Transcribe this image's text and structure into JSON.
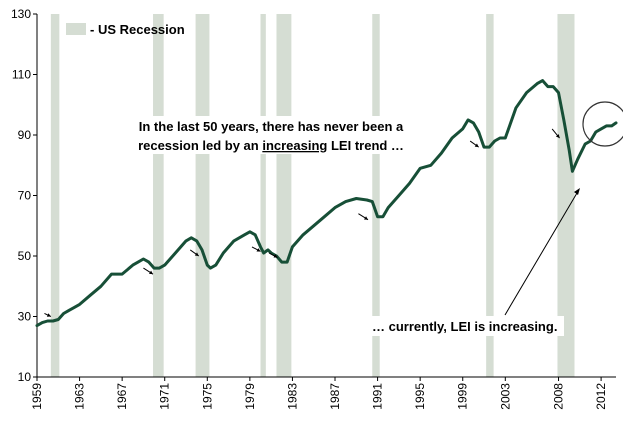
{
  "chart_data": {
    "type": "line",
    "ylim": [
      10,
      130
    ],
    "yticks": [
      10,
      30,
      50,
      70,
      90,
      110,
      130
    ],
    "xlim": [
      1959,
      2013.4
    ],
    "xticks": [
      1959,
      1963,
      1967,
      1971,
      1975,
      1979,
      1983,
      1987,
      1991,
      1995,
      1999,
      2003,
      2008,
      2012
    ],
    "grid": false,
    "legend_position": "top-left",
    "recession_label": "- US Recession",
    "recession_color": "#d5ddd3",
    "line_color": "#174f37",
    "recessions": [
      [
        1960.3,
        1961.1
      ],
      [
        1969.9,
        1970.9
      ],
      [
        1973.9,
        1975.2
      ],
      [
        1980.0,
        1980.5
      ],
      [
        1981.5,
        1982.9
      ],
      [
        1990.5,
        1991.2
      ],
      [
        2001.2,
        2001.9
      ],
      [
        2007.9,
        2009.5
      ]
    ],
    "series": [
      {
        "x": [
          1959.0,
          1959.5,
          1960.0,
          1960.5,
          1961.0,
          1961.5,
          1962.0,
          1962.5,
          1963.0,
          1964.0,
          1965.0,
          1966.0,
          1966.5,
          1967.0,
          1967.5,
          1968.0,
          1968.5,
          1969.0,
          1969.5,
          1970.0,
          1970.5,
          1971.0,
          1972.0,
          1973.0,
          1973.5,
          1974.0,
          1974.5,
          1975.0,
          1975.3,
          1975.8,
          1976.5,
          1977.5,
          1978.5,
          1979.0,
          1979.5,
          1980.0,
          1980.3,
          1980.7,
          1981.0,
          1981.5,
          1982.0,
          1982.5,
          1983.0,
          1984.0,
          1985.0,
          1986.0,
          1987.0,
          1988.0,
          1989.0,
          1990.0,
          1990.5,
          1991.0,
          1991.5,
          1992.0,
          1993.0,
          1994.0,
          1995.0,
          1996.0,
          1997.0,
          1998.0,
          1999.0,
          1999.5,
          2000.0,
          2000.5,
          2001.0,
          2001.5,
          2002.0,
          2002.5,
          2003.0,
          2004.0,
          2005.0,
          2006.0,
          2006.5,
          2007.0,
          2007.5,
          2008.0,
          2008.5,
          2009.0,
          2009.3,
          2009.8,
          2010.5,
          2011.0,
          2011.5,
          2012.0,
          2012.5,
          2013.0,
          2013.4
        ],
        "y": [
          27,
          28,
          28.5,
          28.5,
          29,
          31,
          32,
          33,
          34,
          37,
          40,
          44,
          44,
          44,
          45.5,
          47,
          48,
          49,
          48,
          46,
          46,
          47,
          51,
          55,
          56,
          55,
          52,
          47,
          46,
          47,
          51,
          55,
          57,
          58,
          57,
          53,
          51,
          52,
          51,
          50,
          48,
          48,
          53,
          57,
          60,
          63,
          66,
          68,
          69,
          68.5,
          68,
          63,
          63,
          66,
          70,
          74,
          79,
          80,
          84,
          89,
          92,
          95,
          94,
          91,
          86,
          86,
          88,
          89,
          89,
          99,
          104,
          107,
          108,
          106,
          106,
          104,
          95,
          85,
          78,
          82,
          87,
          88,
          91,
          92,
          93,
          93,
          94
        ]
      }
    ],
    "annotations": {
      "line1": "In the last 50 years, there has never been a",
      "line2_before": "recession led by an ",
      "line2_underlined": "increasing",
      "line2_after": " LEI trend …",
      "currently": "… currently, LEI is increasing."
    },
    "small_arrows": [
      [
        1959.7,
        31,
        1960.3,
        30
      ],
      [
        1969.0,
        46,
        1969.9,
        44
      ],
      [
        1973.4,
        52,
        1974.2,
        50
      ],
      [
        1979.2,
        53,
        1980.0,
        51.5
      ],
      [
        1980.8,
        51,
        1981.6,
        49.5
      ],
      [
        1989.2,
        64,
        1990.1,
        62
      ],
      [
        1999.7,
        88,
        2000.5,
        86
      ],
      [
        2007.4,
        92,
        2008.1,
        89
      ]
    ]
  }
}
